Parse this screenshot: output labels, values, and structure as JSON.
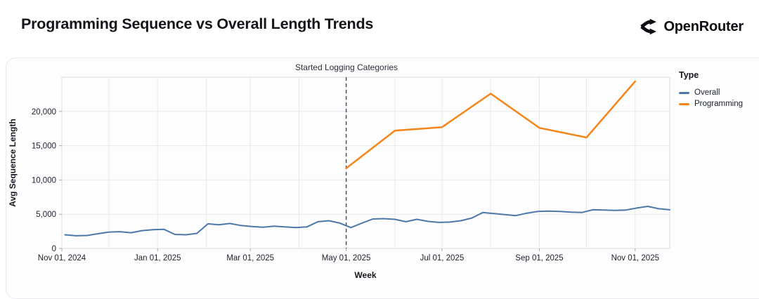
{
  "header": {
    "title": "Programming Sequence vs Overall Length Trends",
    "brand": "OpenRouter"
  },
  "chart_data": {
    "type": "line",
    "title": "Programming Sequence vs Overall Length Trends",
    "xlabel": "Week",
    "ylabel": "Avg Sequence Length",
    "x_domain": [
      "2024-11-01",
      "2025-11-23"
    ],
    "ylim": [
      0,
      25000
    ],
    "grid": true,
    "legend": {
      "title": "Type",
      "position": "right"
    },
    "x_ticks": [
      {
        "date": "2024-11-01",
        "label": "Nov 01, 2024"
      },
      {
        "date": "2025-01-01",
        "label": "Jan 01, 2025"
      },
      {
        "date": "2025-03-01",
        "label": "Mar 01, 2025"
      },
      {
        "date": "2025-05-01",
        "label": "May 01, 2025"
      },
      {
        "date": "2025-07-01",
        "label": "Jul 01, 2025"
      },
      {
        "date": "2025-09-01",
        "label": "Sep 01, 2025"
      },
      {
        "date": "2025-11-01",
        "label": "Nov 01, 2025"
      }
    ],
    "x_gridlines": [
      "2024-12-01",
      "2025-01-01",
      "2025-02-01",
      "2025-03-01",
      "2025-04-01",
      "2025-05-01",
      "2025-06-01",
      "2025-07-01",
      "2025-08-01",
      "2025-09-01",
      "2025-10-01",
      "2025-11-01"
    ],
    "y_ticks": [
      {
        "value": 0,
        "label": "0"
      },
      {
        "value": 5000,
        "label": "5,000"
      },
      {
        "value": 10000,
        "label": "10,000"
      },
      {
        "value": 15000,
        "label": "15,000"
      },
      {
        "value": 20000,
        "label": "20,000"
      }
    ],
    "annotation": {
      "label": "Started Logging Categories",
      "x": "2025-05-01",
      "style": "dashed-vertical-rule",
      "color": "#4a4f5e"
    },
    "series": [
      {
        "name": "Overall",
        "color": "#4c78a8",
        "points": [
          [
            "2024-11-03",
            2000
          ],
          [
            "2024-11-10",
            1850
          ],
          [
            "2024-11-17",
            1900
          ],
          [
            "2024-11-24",
            2150
          ],
          [
            "2024-12-01",
            2400
          ],
          [
            "2024-12-08",
            2450
          ],
          [
            "2024-12-15",
            2300
          ],
          [
            "2024-12-22",
            2600
          ],
          [
            "2024-12-29",
            2750
          ],
          [
            "2025-01-05",
            2800
          ],
          [
            "2025-01-12",
            2050
          ],
          [
            "2025-01-19",
            2000
          ],
          [
            "2025-01-26",
            2200
          ],
          [
            "2025-02-02",
            3600
          ],
          [
            "2025-02-09",
            3450
          ],
          [
            "2025-02-16",
            3650
          ],
          [
            "2025-02-23",
            3350
          ],
          [
            "2025-03-02",
            3200
          ],
          [
            "2025-03-09",
            3100
          ],
          [
            "2025-03-16",
            3250
          ],
          [
            "2025-03-23",
            3150
          ],
          [
            "2025-03-30",
            3050
          ],
          [
            "2025-04-06",
            3150
          ],
          [
            "2025-04-13",
            3900
          ],
          [
            "2025-04-20",
            4050
          ],
          [
            "2025-04-27",
            3700
          ],
          [
            "2025-05-04",
            3050
          ],
          [
            "2025-05-11",
            3700
          ],
          [
            "2025-05-18",
            4300
          ],
          [
            "2025-05-25",
            4350
          ],
          [
            "2025-06-01",
            4250
          ],
          [
            "2025-06-08",
            3900
          ],
          [
            "2025-06-15",
            4250
          ],
          [
            "2025-06-22",
            3950
          ],
          [
            "2025-06-29",
            3800
          ],
          [
            "2025-07-06",
            3850
          ],
          [
            "2025-07-13",
            4050
          ],
          [
            "2025-07-20",
            4450
          ],
          [
            "2025-07-27",
            5250
          ],
          [
            "2025-08-03",
            5100
          ],
          [
            "2025-08-10",
            4950
          ],
          [
            "2025-08-17",
            4800
          ],
          [
            "2025-08-24",
            5150
          ],
          [
            "2025-08-31",
            5400
          ],
          [
            "2025-09-07",
            5450
          ],
          [
            "2025-09-14",
            5400
          ],
          [
            "2025-09-21",
            5300
          ],
          [
            "2025-09-28",
            5250
          ],
          [
            "2025-10-05",
            5650
          ],
          [
            "2025-10-12",
            5600
          ],
          [
            "2025-10-19",
            5550
          ],
          [
            "2025-10-26",
            5600
          ],
          [
            "2025-11-02",
            5900
          ],
          [
            "2025-11-09",
            6150
          ],
          [
            "2025-11-16",
            5800
          ],
          [
            "2025-11-23",
            5650
          ]
        ]
      },
      {
        "name": "Programming",
        "color": "#f58518",
        "points": [
          [
            "2025-05-01",
            11700
          ],
          [
            "2025-06-01",
            17200
          ],
          [
            "2025-07-01",
            17700
          ],
          [
            "2025-08-01",
            22600
          ],
          [
            "2025-09-01",
            17600
          ],
          [
            "2025-10-01",
            16200
          ],
          [
            "2025-11-01",
            24400
          ]
        ]
      }
    ],
    "colors": {
      "overall": "#4c78a8",
      "programming": "#f58518",
      "annotation_rule": "#4a4f5e",
      "gridline": "#e9e9ed",
      "plot_border": "#dcdce2"
    }
  }
}
